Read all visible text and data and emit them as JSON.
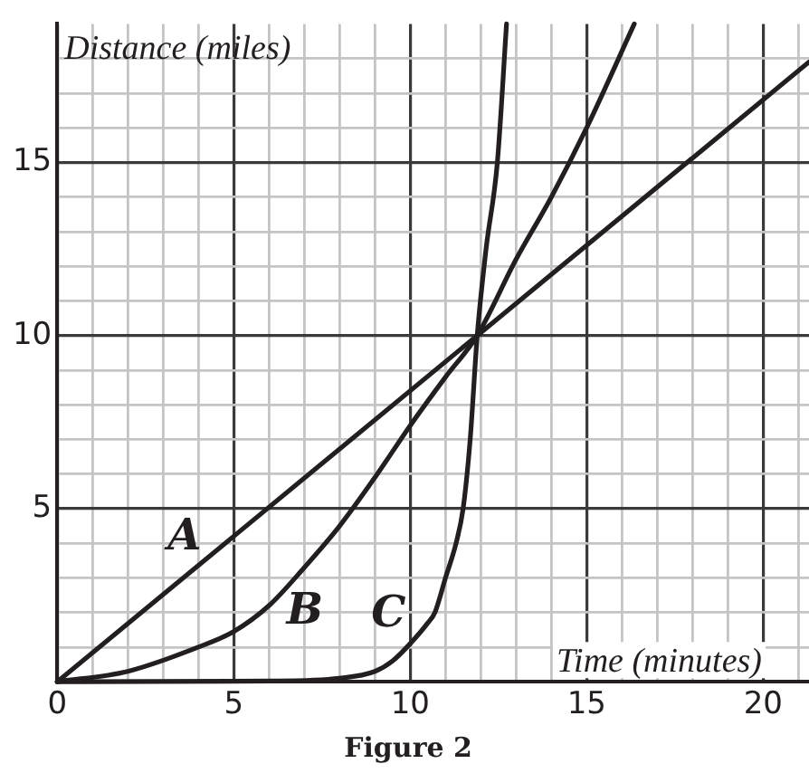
{
  "chart_data": {
    "type": "line",
    "xlabel": "Time (minutes)",
    "ylabel": "Distance (miles)",
    "title": "Figure 2",
    "xlim": [
      0,
      21.3
    ],
    "ylim": [
      0,
      19
    ],
    "xticks": [
      0,
      {
        "value": 1,
        "label": null
      },
      {
        "value": 2,
        "label": null
      },
      {
        "value": 3,
        "label": null
      },
      {
        "value": 4,
        "label": null
      },
      5,
      {
        "value": 6,
        "label": null
      },
      {
        "value": 7,
        "label": null
      },
      {
        "value": 8,
        "label": null
      },
      {
        "value": 9,
        "label": null
      },
      10,
      {
        "value": 11,
        "label": null
      },
      {
        "value": 12,
        "label": null
      },
      {
        "value": 13,
        "label": null
      },
      {
        "value": 14,
        "label": null
      },
      15,
      {
        "value": 16,
        "label": null
      },
      {
        "value": 17,
        "label": null
      },
      {
        "value": 18,
        "label": null
      },
      {
        "value": 19,
        "label": null
      },
      20,
      {
        "value": 21,
        "label": null
      }
    ],
    "yticks": [
      {
        "value": 0,
        "label": null
      },
      {
        "value": 1,
        "label": null
      },
      {
        "value": 2,
        "label": null
      },
      {
        "value": 3,
        "label": null
      },
      {
        "value": 4,
        "label": null
      },
      5,
      {
        "value": 6,
        "label": null
      },
      {
        "value": 7,
        "label": null
      },
      {
        "value": 8,
        "label": null
      },
      {
        "value": 9,
        "label": null
      },
      10,
      {
        "value": 11,
        "label": null
      },
      {
        "value": 12,
        "label": null
      },
      {
        "value": 13,
        "label": null
      },
      {
        "value": 14,
        "label": null
      },
      15,
      {
        "value": 16,
        "label": null
      },
      {
        "value": 17,
        "label": null
      },
      {
        "value": 18,
        "label": null
      }
    ],
    "grid": true,
    "marker": "none",
    "line_style": "solid",
    "series": [
      {
        "name": "A",
        "color": "#231f20",
        "x": [
          0,
          11.9,
          21.3
        ],
        "values": [
          0,
          10,
          17.9
        ]
      },
      {
        "name": "B",
        "color": "#231f20",
        "x": [
          0,
          2,
          4,
          5,
          6,
          7,
          8,
          9,
          10,
          11,
          11.9,
          13,
          14,
          15,
          16.35
        ],
        "values": [
          0,
          0.3,
          1,
          1.45,
          2.2,
          3.3,
          4.5,
          5.9,
          7.4,
          8.8,
          10,
          12.2,
          14,
          16,
          19
        ]
      },
      {
        "name": "C",
        "color": "#231f20",
        "x": [
          0,
          6,
          8,
          9,
          9.5,
          10,
          10.5,
          10.7,
          11,
          11.3,
          11.5,
          11.7,
          11.9,
          12.15,
          12.47,
          12.73
        ],
        "values": [
          0,
          0.02,
          0.1,
          0.3,
          0.6,
          1.1,
          1.7,
          2,
          3,
          4,
          5,
          7,
          10,
          12.5,
          15,
          19
        ]
      }
    ]
  }
}
